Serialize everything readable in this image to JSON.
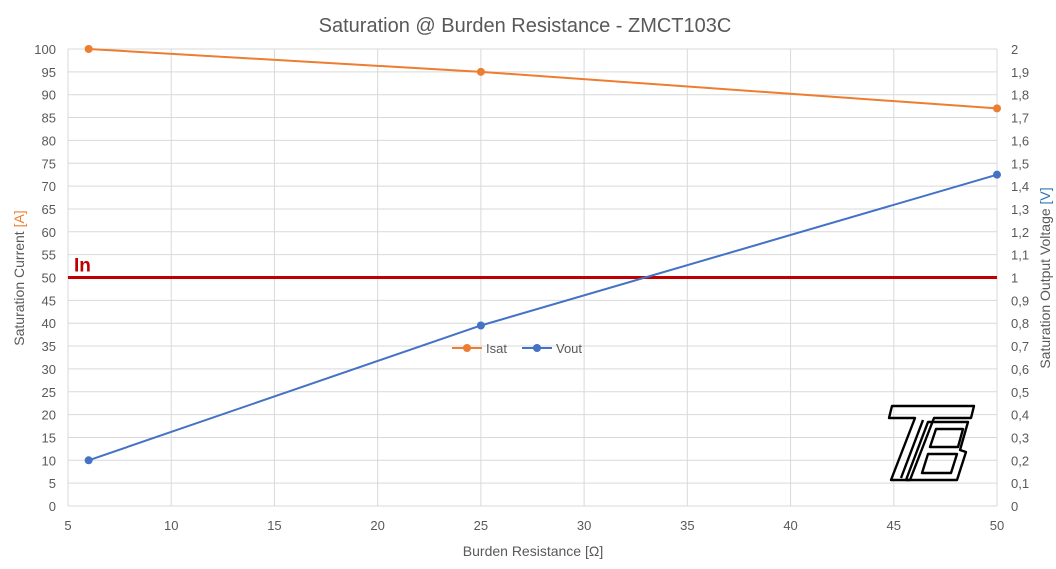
{
  "chart_data": {
    "type": "line",
    "title": "Saturation @ Burden Resistance  -  ZMCT103C",
    "xlabel": "Burden Resistance [Ω]",
    "ylabel": {
      "text": "Saturation Current ",
      "unit": "[A]"
    },
    "y2label": {
      "text": "Saturation Output Voltage ",
      "unit": "[V]"
    },
    "xlim": [
      5,
      50
    ],
    "ylim": [
      0,
      100
    ],
    "y2lim": [
      0,
      2
    ],
    "x_ticks": [
      "5",
      "10",
      "15",
      "20",
      "25",
      "30",
      "35",
      "40",
      "45",
      "50"
    ],
    "y_ticks": [
      "0",
      "5",
      "10",
      "15",
      "20",
      "25",
      "30",
      "35",
      "40",
      "45",
      "50",
      "55",
      "60",
      "65",
      "70",
      "75",
      "80",
      "85",
      "90",
      "95",
      "100"
    ],
    "y2_ticks": [
      "0",
      "0,1",
      "0,2",
      "0,3",
      "0,4",
      "0,5",
      "0,6",
      "0,7",
      "0,8",
      "0,9",
      "1",
      "1,1",
      "1,2",
      "1,3",
      "1,4",
      "1,5",
      "1,6",
      "1,7",
      "1,8",
      "1,9",
      "2"
    ],
    "grid": true,
    "legend_position": "center",
    "series": [
      {
        "name": "Isat",
        "axis": "left",
        "color": "#ED7D31",
        "x": [
          6,
          25,
          50
        ],
        "y": [
          100,
          95,
          87
        ]
      },
      {
        "name": "Vout",
        "axis": "right",
        "color": "#4472C4",
        "x": [
          6,
          25,
          50
        ],
        "y": [
          0.2,
          0.79,
          1.45
        ]
      }
    ],
    "reference_line": {
      "label": "In",
      "axis": "left",
      "value": 50,
      "color": "#C00000"
    },
    "colors": {
      "text": "#595959",
      "grid": "#D9D9D9",
      "left_unit": "#ED7D31",
      "right_unit": "#2E75B6"
    }
  },
  "logo": {
    "name": "TB-logo",
    "text": "TB"
  }
}
